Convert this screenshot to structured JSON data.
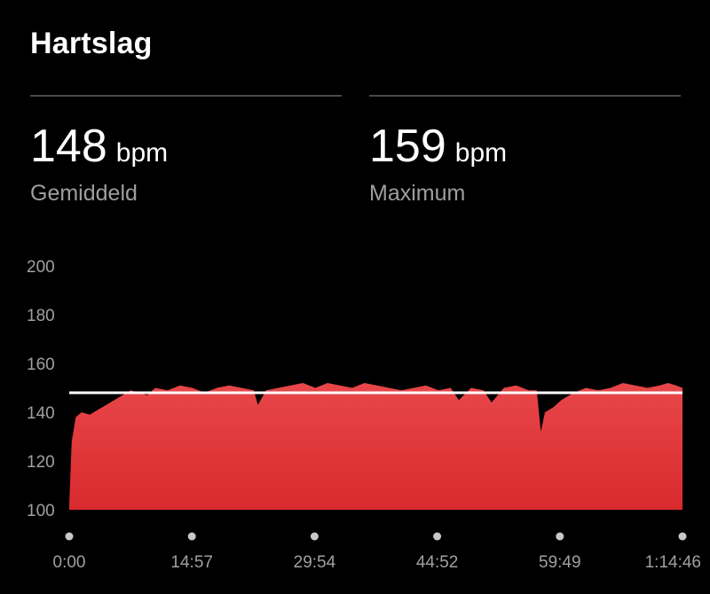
{
  "header": {
    "title": "Hartslag"
  },
  "stats": {
    "average": {
      "value": "148",
      "unit": "bpm",
      "label": "Gemiddeld"
    },
    "maximum": {
      "value": "159",
      "unit": "bpm",
      "label": "Maximum"
    }
  },
  "colors": {
    "background": "#000000",
    "fill_top": "#e8474a",
    "fill_bottom": "#d92a2e",
    "average_line": "#ffffff",
    "tick_text": "#a0a0a0"
  },
  "chart_data": {
    "type": "area",
    "ylim": [
      100,
      200
    ],
    "y_ticks": [
      "200",
      "180",
      "160",
      "140",
      "120",
      "100"
    ],
    "x_ticks": [
      "0:00",
      "14:57",
      "29:54",
      "44:52",
      "59:49",
      "1:14:46"
    ],
    "xlim_minutes": [
      0,
      74.77
    ],
    "average_line": 148,
    "series": [
      {
        "x": [
          0,
          0.3,
          0.8,
          1.5,
          2.5,
          3.5,
          4.5,
          5.5,
          6.5,
          7.5,
          8.5,
          9.5,
          10.5,
          12,
          13.5,
          15,
          16.5,
          18,
          19.5,
          21,
          22.5,
          23,
          24,
          25.5,
          27,
          28.5,
          30,
          31.5,
          33,
          34.5,
          36,
          37.5,
          39,
          40.5,
          42,
          43.5,
          45,
          46.5,
          47.5,
          49,
          50.5,
          51.5,
          53,
          54.5,
          56,
          57,
          57.5,
          58,
          59,
          60,
          61.5,
          63,
          64.5,
          66,
          67.5,
          69,
          70.5,
          72,
          73,
          74,
          74.77
        ],
        "values": [
          102,
          128,
          138,
          140,
          139,
          141,
          143,
          145,
          147,
          149,
          148,
          147,
          150,
          149,
          151,
          150,
          148,
          150,
          151,
          150,
          149,
          143,
          149,
          150,
          151,
          152,
          150,
          152,
          151,
          150,
          152,
          151,
          150,
          149,
          150,
          151,
          149,
          150,
          145,
          150,
          149,
          144,
          150,
          151,
          149,
          149,
          132,
          140,
          142,
          145,
          148,
          150,
          149,
          150,
          152,
          151,
          150,
          151,
          152,
          151,
          150
        ]
      }
    ]
  }
}
